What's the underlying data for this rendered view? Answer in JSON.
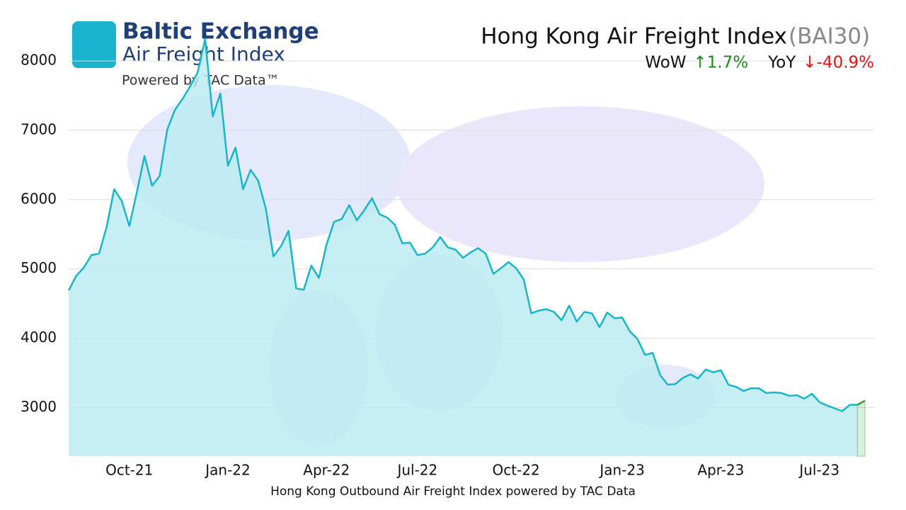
{
  "logo": {
    "name": "Baltic Exchange",
    "product": "Air Freight Index",
    "powered": "Powered by TAC Data™"
  },
  "chart_data": {
    "type": "area",
    "title": "Hong Kong Air Freight Index",
    "code": "(BAI30)",
    "stats": [
      {
        "label": "WoW",
        "value": "↑1.7%",
        "color": "#1a8a1a"
      },
      {
        "label": "YoY",
        "value": "↓-40.9%",
        "color": "#ee1111"
      }
    ],
    "caption": "Hong Kong Outbound Air Freight Index powered by TAC Data",
    "categories": [
      null,
      null,
      null,
      null,
      null,
      null,
      null,
      null,
      "Oct-21",
      null,
      null,
      null,
      null,
      null,
      null,
      null,
      null,
      null,
      null,
      null,
      null,
      "Jan-22",
      null,
      null,
      null,
      null,
      null,
      null,
      null,
      null,
      null,
      null,
      null,
      null,
      "Apr-22",
      null,
      null,
      null,
      null,
      null,
      null,
      null,
      null,
      null,
      null,
      null,
      "Jul-22",
      null,
      null,
      null,
      null,
      null,
      null,
      null,
      null,
      null,
      null,
      null,
      null,
      "Oct-22",
      null,
      null,
      null,
      null,
      null,
      null,
      null,
      null,
      null,
      null,
      null,
      null,
      null,
      "Jan-23",
      null,
      null,
      null,
      null,
      null,
      null,
      null,
      null,
      null,
      null,
      null,
      null,
      "Apr-23",
      null,
      null,
      null,
      null,
      null,
      null,
      null,
      null,
      null,
      null,
      null,
      null,
      "Jul-23",
      null,
      null,
      null,
      null,
      null,
      null
    ],
    "values": [
      4690,
      4900,
      5020,
      5200,
      5220,
      5600,
      6150,
      5980,
      5620,
      6110,
      6630,
      6200,
      6340,
      7010,
      7290,
      7450,
      7630,
      7830,
      8320,
      7200,
      7530,
      6490,
      6750,
      6150,
      6430,
      6270,
      5870,
      5180,
      5330,
      5550,
      4720,
      4700,
      5050,
      4870,
      5350,
      5680,
      5720,
      5920,
      5700,
      5850,
      6020,
      5790,
      5740,
      5640,
      5370,
      5380,
      5200,
      5220,
      5310,
      5460,
      5310,
      5280,
      5160,
      5240,
      5300,
      5220,
      4930,
      5010,
      5100,
      5010,
      4850,
      4360,
      4400,
      4420,
      4380,
      4260,
      4470,
      4240,
      4380,
      4360,
      4160,
      4370,
      4290,
      4300,
      4100,
      3990,
      3760,
      3790,
      3470,
      3330,
      3340,
      3430,
      3480,
      3420,
      3550,
      3510,
      3540,
      3330,
      3300,
      3240,
      3280,
      3280,
      3210,
      3220,
      3210,
      3170,
      3180,
      3130,
      3200,
      3080,
      3030,
      2990,
      2950,
      3040,
      3040,
      3100
    ],
    "color": "#16b6cc",
    "fill_color": "#bdebf1",
    "highlight_color": "#2ca02c",
    "ylim": [
      2300,
      8700
    ],
    "yticks": [
      3000,
      4000,
      5000,
      6000,
      7000,
      8000
    ],
    "grid": true
  }
}
